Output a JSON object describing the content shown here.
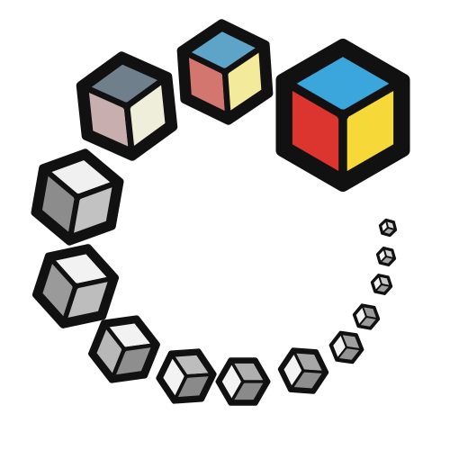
{
  "illustration": {
    "subject": "ring-of-cubes-loading-spinner",
    "outline_color": "#111111",
    "background_color": "#ffffff",
    "cubes": [
      {
        "index": 0,
        "top": "#3aa6dc",
        "left": "#dc3530",
        "right": "#f6d838"
      },
      {
        "index": 1,
        "top": "#5ea4c8",
        "left": "#d47670",
        "right": "#f3ea9c"
      },
      {
        "index": 2,
        "top": "#6f7f8c",
        "left": "#c8aeae",
        "right": "#efeedb"
      },
      {
        "index": 3,
        "top": "#f0f0f0",
        "left": "#8c8c8c",
        "right": "#c2c2c2"
      },
      {
        "index": 4,
        "top": "#f2f2f2",
        "left": "#9a9a9a",
        "right": "#bdbdbd"
      },
      {
        "index": 5,
        "top": "#f2f2f2",
        "left": "#b8b8b8",
        "right": "#8e8e8e"
      },
      {
        "index": 6,
        "top": "#bdbdbd",
        "left": "#f3f3f3",
        "right": "#8a8a8a"
      },
      {
        "index": 7,
        "top": "#b0b0b0",
        "left": "#f3f3f3",
        "right": "#8a8a8a"
      },
      {
        "index": 8,
        "top": "#a8a8a8",
        "left": "#f3f3f3",
        "right": "#8e8e8e"
      },
      {
        "index": 9,
        "top": "#a0a0a0",
        "left": "#f3f3f3",
        "right": "#939393"
      },
      {
        "index": 10,
        "top": "#9a9a9a",
        "left": "#f3f3f3",
        "right": "#9a9a9a"
      },
      {
        "index": 11,
        "top": "#c9c9c9",
        "left": "#f3f3f3",
        "right": "#9c9c9c"
      },
      {
        "index": 12,
        "top": "#d2d2d2",
        "left": "#f3f3f3",
        "right": "#a3a3a3"
      },
      {
        "index": 13,
        "top": "#d8d8d8",
        "left": "#f3f3f3",
        "right": "#ababab"
      }
    ]
  }
}
